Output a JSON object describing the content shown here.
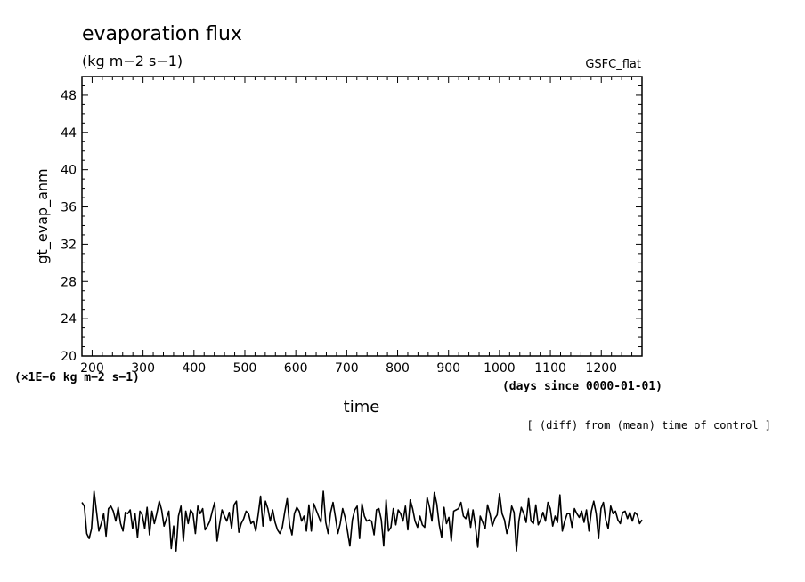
{
  "chart_data": {
    "type": "line",
    "title": "evaporation flux",
    "units": "(kg m−2 s−1)",
    "dataset": "GSFC_flat",
    "ylabel": "gt_evap_anm",
    "xlabel": "time",
    "x_units": "(days since 0000-01-01)",
    "y_scale_note": "(×1E−6 kg m−2 s−1)",
    "diff_note": "[ (diff) from (mean) time of control ]",
    "xlim": [
      180,
      1280
    ],
    "ylim": [
      20,
      50
    ],
    "x_ticks": [
      "200",
      "300",
      "400",
      "500",
      "600",
      "700",
      "800",
      "900",
      "1000",
      "1100",
      "1200"
    ],
    "y_ticks": [
      "20",
      "24",
      "28",
      "32",
      "36",
      "40",
      "44",
      "48"
    ],
    "grid": false,
    "main_series": [],
    "anomaly_series": {
      "x_start": 180,
      "x_end": 1280,
      "values": [
        0.55,
        0.4,
        -0.7,
        -0.9,
        -0.5,
        1.0,
        0.2,
        -0.6,
        -0.3,
        0.1,
        -0.8,
        0.3,
        0.4,
        0.2,
        -0.2,
        0.35,
        -0.3,
        -0.6,
        0.15,
        0.1,
        0.25,
        -0.5,
        0.1,
        -0.85,
        0.2,
        0.05,
        -0.5,
        0.35,
        -0.75,
        0.2,
        -0.3,
        0.1,
        0.6,
        0.25,
        -0.4,
        -0.1,
        0.2,
        -1.3,
        -0.4,
        -1.4,
        0.0,
        0.4,
        -1.0,
        0.2,
        -0.3,
        0.25,
        0.1,
        -0.7,
        0.4,
        0.1,
        0.3,
        -0.55,
        -0.4,
        -0.2,
        0.2,
        0.55,
        -1.0,
        -0.35,
        0.25,
        0.0,
        -0.2,
        0.15,
        -0.5,
        0.45,
        0.6,
        -0.65,
        -0.3,
        -0.1,
        0.2,
        0.1,
        -0.3,
        -0.2,
        -0.6,
        0.05,
        0.8,
        -0.4,
        0.6,
        0.3,
        -0.2,
        0.25,
        -0.25,
        -0.55,
        -0.7,
        -0.45,
        0.15,
        0.7,
        -0.35,
        -0.75,
        0.1,
        0.35,
        0.2,
        -0.2,
        0.0,
        -0.6,
        0.45,
        -0.6,
        0.5,
        0.25,
        0.0,
        -0.25,
        1.0,
        -0.25,
        -0.7,
        0.15,
        0.55,
        -0.05,
        -0.7,
        -0.3,
        0.3,
        -0.05,
        -0.6,
        -1.2,
        -0.15,
        0.25,
        0.4,
        -0.9,
        0.5,
        0.0,
        -0.2,
        -0.15,
        -0.2,
        -0.75,
        0.25,
        0.3,
        -0.15,
        -1.2,
        0.65,
        -0.6,
        -0.45,
        0.3,
        -0.35,
        0.25,
        0.1,
        -0.2,
        0.4,
        -0.55,
        0.65,
        0.3,
        -0.2,
        -0.45,
        0.0,
        -0.35,
        -0.45,
        0.75,
        0.35,
        -0.2,
        0.95,
        0.5,
        -0.35,
        -0.85,
        0.35,
        -0.3,
        -0.05,
        -1.0,
        0.2,
        0.25,
        0.3,
        0.55,
        0.0,
        -0.1,
        0.3,
        -0.45,
        0.25,
        -0.4,
        -1.25,
        0.0,
        -0.25,
        -0.5,
        0.45,
        0.1,
        -0.4,
        -0.1,
        0.05,
        0.9,
        0.1,
        -0.15,
        -0.7,
        -0.35,
        0.4,
        0.15,
        -1.4,
        -0.2,
        0.35,
        0.1,
        -0.25,
        0.7,
        -0.2,
        -0.3,
        0.45,
        -0.35,
        -0.15,
        0.15,
        -0.2,
        0.55,
        0.3,
        -0.4,
        0.0,
        -0.25,
        0.85,
        -0.6,
        -0.2,
        0.1,
        0.1,
        -0.45,
        0.3,
        0.1,
        -0.05,
        0.2,
        -0.25,
        0.25,
        -0.6,
        0.2,
        0.6,
        0.1,
        -0.9,
        0.3,
        0.55,
        -0.15,
        -0.5,
        0.4,
        0.1,
        0.2,
        -0.15,
        -0.3,
        0.15,
        0.2,
        -0.1,
        0.15,
        -0.2,
        0.15,
        0.05,
        -0.3,
        -0.15
      ]
    }
  }
}
